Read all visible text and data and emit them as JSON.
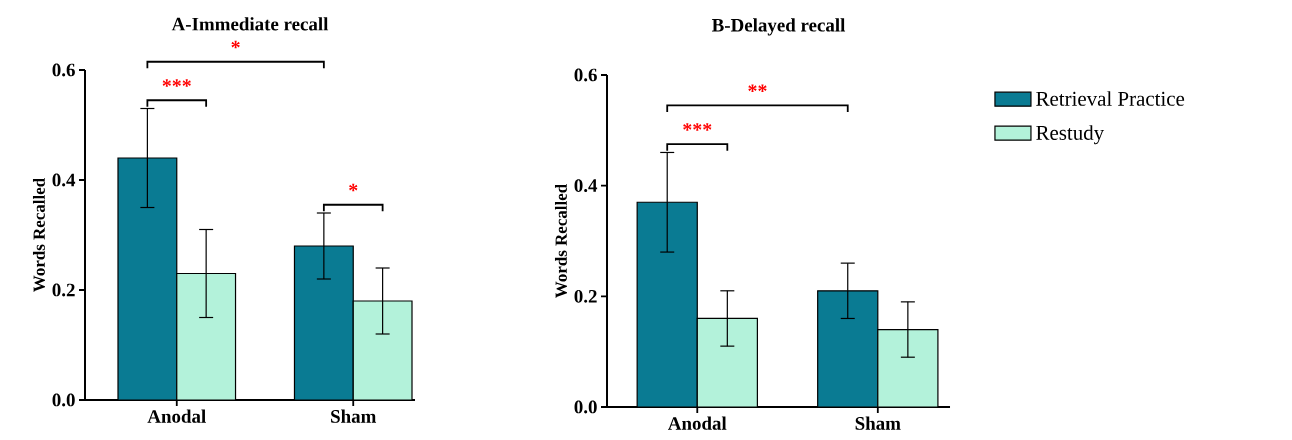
{
  "chart_data": [
    {
      "type": "bar",
      "title": "A-Immediate recall",
      "ylabel": "Words Recalled",
      "categories": [
        "Anodal",
        "Sham"
      ],
      "series": [
        {
          "color": "#0a7b93",
          "values": [
            0.44,
            0.28
          ],
          "errors": [
            0.09,
            0.06
          ]
        },
        {
          "color": "#b3f2da",
          "values": [
            0.23,
            0.18
          ],
          "errors": [
            0.08,
            0.06
          ]
        }
      ],
      "ylim": [
        0,
        0.6
      ],
      "yticks": [
        {
          "value": 0,
          "label": "0.0"
        },
        0.2,
        0.4,
        0.6
      ],
      "grid": false,
      "annotations": [
        "*",
        "***",
        "*"
      ]
    },
    {
      "type": "bar",
      "title": "B-Delayed recall",
      "ylabel": "Words Recalled",
      "categories": [
        "Anodal",
        "Sham"
      ],
      "series": [
        {
          "name": "Retrieval Practice",
          "color": "#0a7b93",
          "values": [
            0.37,
            0.21
          ],
          "errors": [
            0.09,
            0.05
          ]
        },
        {
          "name": "Restudy",
          "color": "#b3f2da",
          "values": [
            0.16,
            0.14
          ],
          "errors": [
            0.05,
            0.05
          ]
        }
      ],
      "ylim": [
        0,
        0.6
      ],
      "yticks": [
        {
          "value": 0,
          "label": "0.0"
        },
        0.2,
        0.4,
        0.6
      ],
      "grid": false,
      "legend": "right",
      "annotations": [
        "**",
        "***"
      ]
    }
  ]
}
